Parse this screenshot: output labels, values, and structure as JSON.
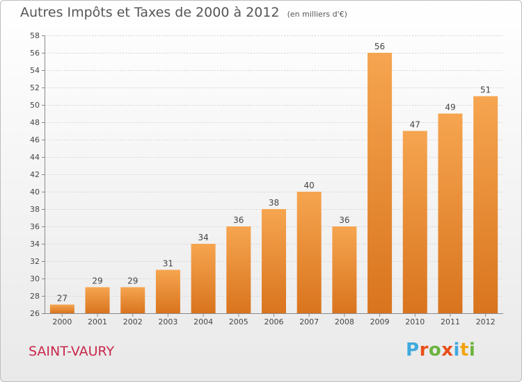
{
  "chart_data": {
    "type": "bar",
    "title": "Autres Impôts et Taxes de 2000 à 2012",
    "unit_note": "(en milliers d'€)",
    "categories": [
      "2000",
      "2001",
      "2002",
      "2003",
      "2004",
      "2005",
      "2006",
      "2007",
      "2008",
      "2009",
      "2010",
      "2011",
      "2012"
    ],
    "values": [
      27,
      29,
      29,
      31,
      34,
      36,
      38,
      40,
      36,
      56,
      47,
      49,
      51
    ],
    "ylim": [
      26,
      58
    ],
    "yticks": [
      26,
      28,
      30,
      32,
      34,
      36,
      38,
      40,
      42,
      44,
      46,
      48,
      50,
      52,
      54,
      56,
      58
    ],
    "grid": true,
    "bar_color_top": "#f6a550",
    "bar_color_bottom": "#d9741e"
  },
  "footer": {
    "commune": "SAINT-VAURY",
    "commune_color": "#c8284b",
    "brand": "Proxiti",
    "brand_colors": [
      "#3fa9dd",
      "#e94e1b",
      "#6cb33e",
      "#e94e1b",
      "#3fa9dd",
      "#f2a30f",
      "#6cb33e"
    ]
  }
}
